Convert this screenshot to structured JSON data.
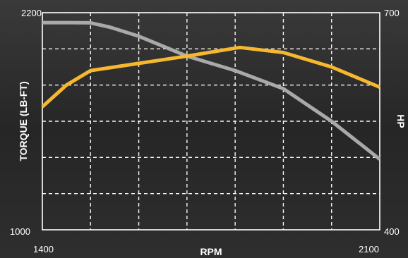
{
  "chart_data": {
    "type": "line",
    "xlabel": "RPM",
    "ylabel_left": "TORQUE (LB-FT)",
    "ylabel_right": "HP",
    "xlim": [
      1400,
      2100
    ],
    "ylim_left": [
      1000,
      2200
    ],
    "ylim_right": [
      400,
      700
    ],
    "x_ticks": [
      "1400",
      "2100"
    ],
    "y_ticks_left": [
      "1000",
      "2200"
    ],
    "y_ticks_right": [
      "400",
      "700"
    ],
    "grid": true,
    "series": [
      {
        "axis": "left",
        "color": "#a9a9a9",
        "x": [
          1400,
          1460,
          1500,
          1540,
          1600,
          1700,
          1800,
          1900,
          2000,
          2100
        ],
        "y": [
          2145,
          2145,
          2144,
          2120,
          2070,
          1960,
          1880,
          1780,
          1600,
          1390
        ]
      },
      {
        "axis": "right",
        "color": "#f5b82e",
        "x": [
          1400,
          1450,
          1500,
          1520,
          1600,
          1700,
          1800,
          1810,
          1900,
          2000,
          2100
        ],
        "y": [
          570,
          600,
          620,
          622,
          630,
          640,
          651,
          652,
          645,
          625,
          597
        ]
      }
    ]
  }
}
